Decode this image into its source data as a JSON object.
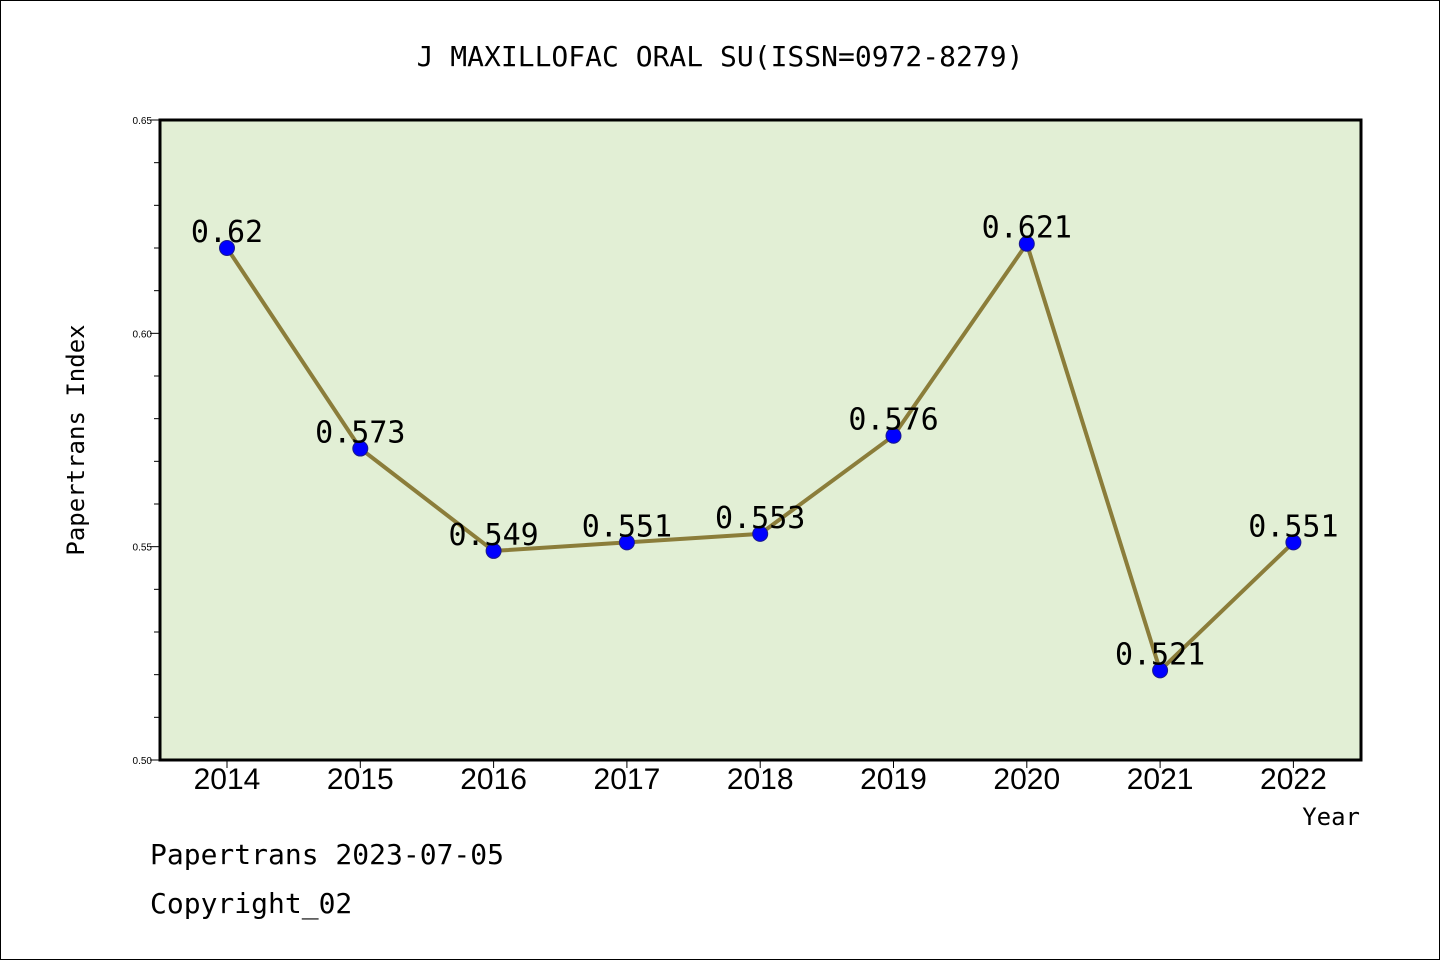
{
  "chart_data": {
    "type": "line",
    "title": "J MAXILLOFAC ORAL SU(ISSN=0972-8279)",
    "xlabel": "Year",
    "ylabel": "Papertrans Index",
    "categories": [
      "2014",
      "2015",
      "2016",
      "2017",
      "2018",
      "2019",
      "2020",
      "2021",
      "2022"
    ],
    "series": [
      {
        "values": [
          0.62,
          0.573,
          0.549,
          0.551,
          0.553,
          0.576,
          0.621,
          0.521,
          0.551
        ],
        "labels": [
          "0.62",
          "0.573",
          "0.549",
          "0.551",
          "0.553",
          "0.576",
          "0.621",
          "0.521",
          "0.551"
        ]
      }
    ],
    "ylim": [
      0.5,
      0.65
    ],
    "yticks": [
      "0.50",
      "0.55",
      "0.60",
      "0.65"
    ],
    "grid": false,
    "legend": "none",
    "colors": {
      "plot_background": "#e2efd5",
      "line": "#8b7d3a",
      "marker": "#0000ff"
    }
  },
  "footer": {
    "line1": "Papertrans 2023-07-05",
    "line2": "Copyright_02"
  }
}
